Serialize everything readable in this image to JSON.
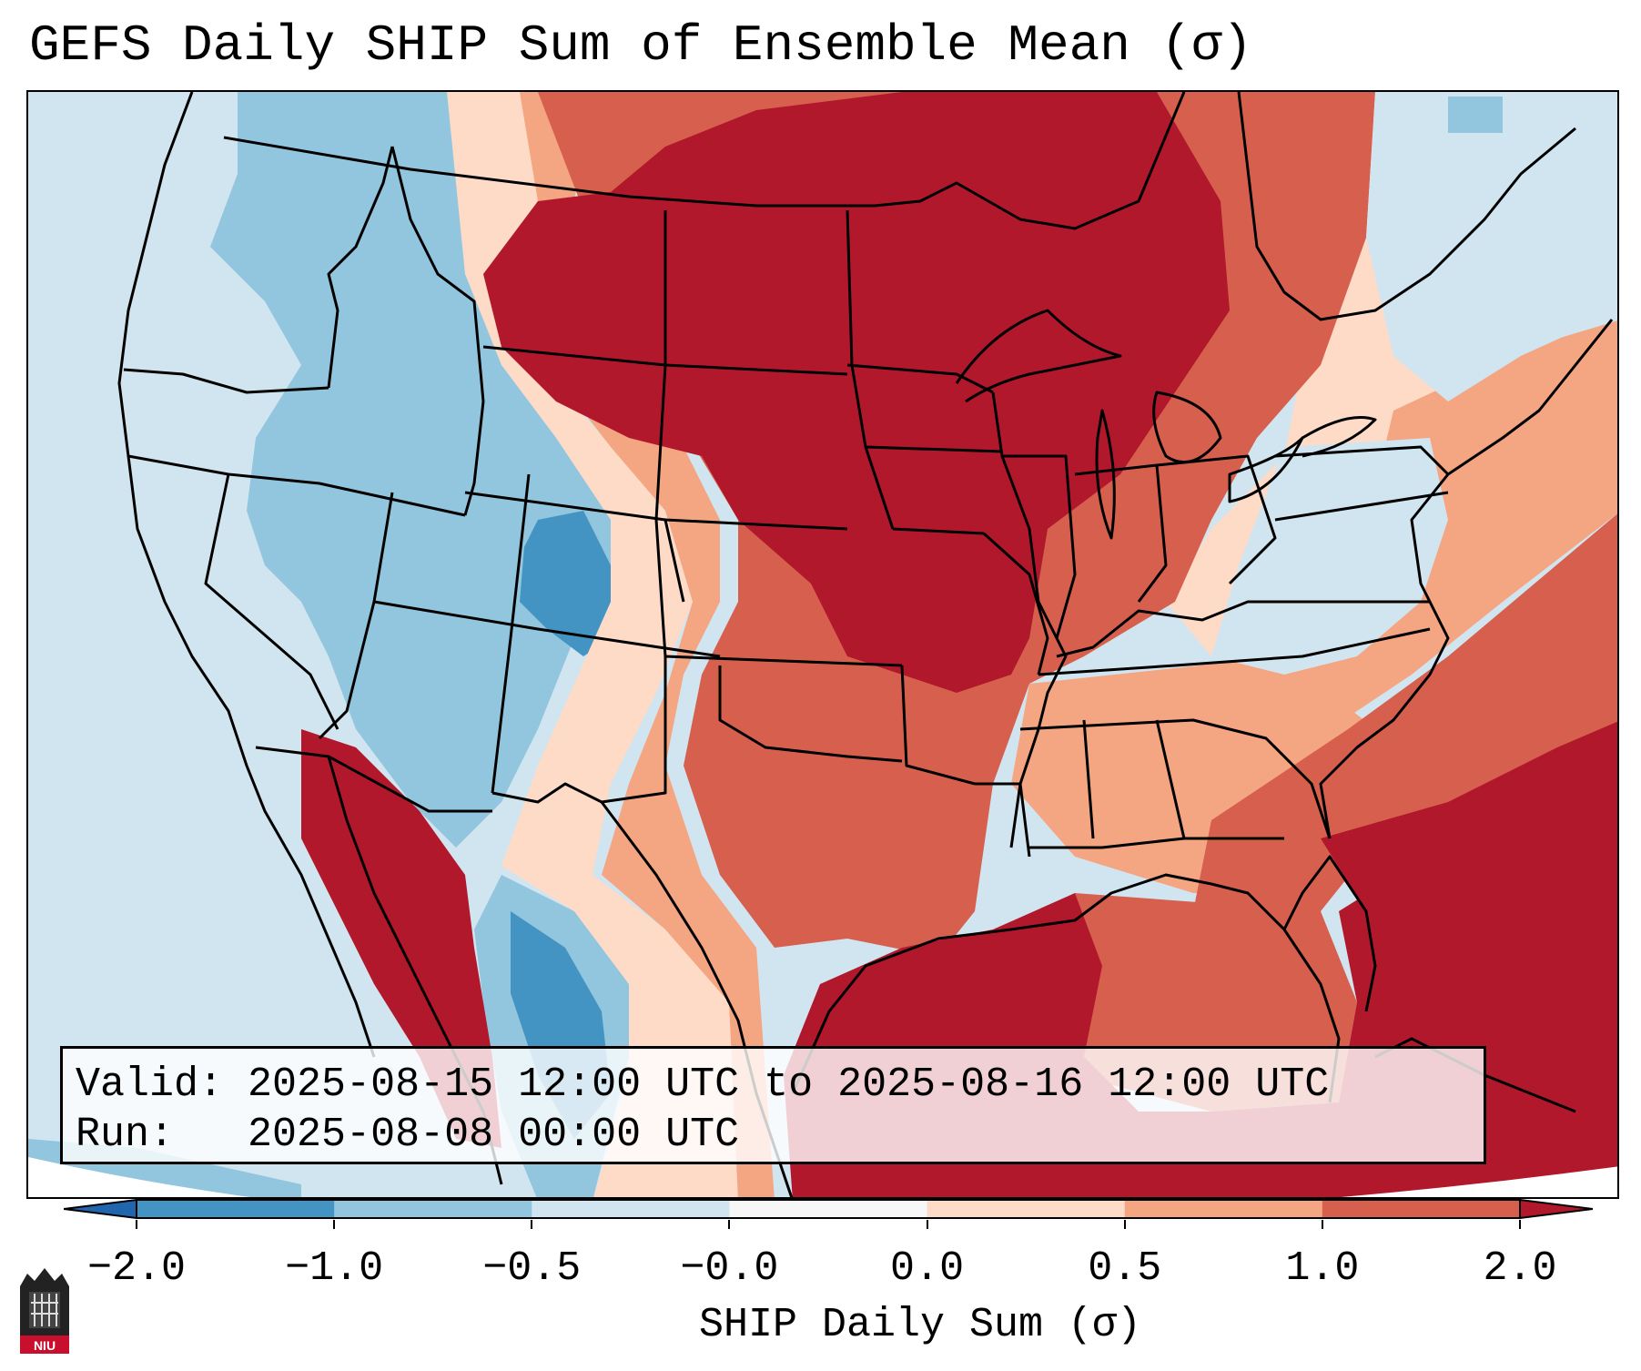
{
  "title": "GEFS Daily SHIP Sum of Ensemble Mean (σ)",
  "info": {
    "valid_label": "Valid:",
    "valid_value": "2025-08-15 12:00 UTC to 2025-08-16 12:00 UTC",
    "run_label": "Run:",
    "run_value": "2025-08-08 00:00 UTC"
  },
  "colorbar": {
    "label": "SHIP Daily Sum (σ)",
    "ticks": [
      "−2.0",
      "−1.0",
      "−0.5",
      "−0.0",
      "0.0",
      "0.5",
      "1.0",
      "2.0"
    ],
    "bins": [
      {
        "from": -2.0,
        "to": -1.0,
        "color": "#4393c3"
      },
      {
        "from": -1.0,
        "to": -0.5,
        "color": "#92c5de"
      },
      {
        "from": -0.5,
        "to": -0.0,
        "color": "#d1e5f0"
      },
      {
        "from": -0.0,
        "to": 0.0,
        "color": "#f7f7f7"
      },
      {
        "from": 0.0,
        "to": 0.5,
        "color": "#fddbc7"
      },
      {
        "from": 0.5,
        "to": 1.0,
        "color": "#f4a582"
      },
      {
        "from": 1.0,
        "to": 2.0,
        "color": "#d6604d"
      }
    ],
    "under_color": "#2166ac",
    "over_color": "#b2182b"
  },
  "logo": {
    "text": "NIU"
  },
  "colors": {
    "deep_red": "#b2182b",
    "red": "#d6604d",
    "salmon": "#f4a582",
    "peach": "#fddbc7",
    "pale_blue": "#d1e5f0",
    "light_blue": "#92c5de",
    "blue": "#4393c3"
  }
}
